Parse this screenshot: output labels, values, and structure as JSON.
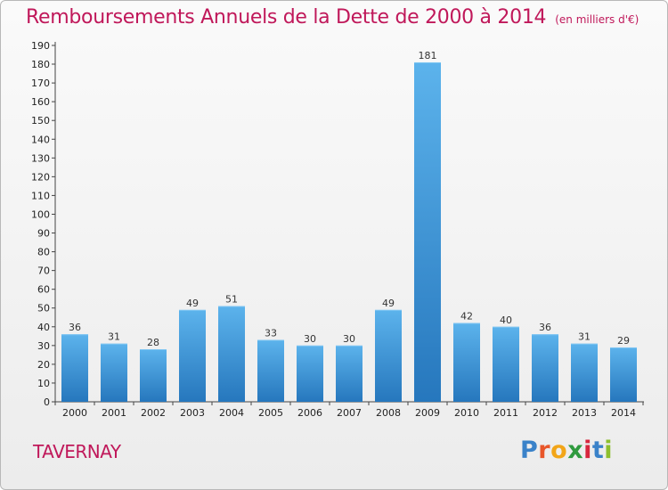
{
  "title": "Remboursements Annuels de la Dette de 2000 à 2014",
  "subtitle": "(en milliers d'€)",
  "commune": "TAVERNAY",
  "logo": {
    "letters": [
      "P",
      "r",
      "o",
      "x",
      "i",
      "t",
      "i"
    ],
    "colors": [
      "#3a82c9",
      "#e8562a",
      "#f2a518",
      "#2f9a3e",
      "#d7263d",
      "#3a82c9",
      "#8dbf2e"
    ]
  },
  "colors": {
    "title": "#c0185a",
    "bar_light": "#5aaee8",
    "bar_dark": "#2a7dc2",
    "axis": "#444444",
    "grid": "#d9d9d9"
  },
  "chart_data": {
    "type": "bar",
    "title": "Remboursements Annuels de la Dette de 2000 à 2014",
    "subtitle": "(en milliers d'€)",
    "categories": [
      "2000",
      "2001",
      "2002",
      "2003",
      "2004",
      "2005",
      "2006",
      "2007",
      "2008",
      "2009",
      "2010",
      "2011",
      "2012",
      "2013",
      "2014"
    ],
    "values": [
      36,
      31,
      28,
      49,
      51,
      33,
      30,
      30,
      49,
      181,
      42,
      40,
      36,
      31,
      29
    ],
    "ylim": [
      0,
      190
    ],
    "yticks": [
      0,
      10,
      20,
      30,
      40,
      50,
      60,
      70,
      80,
      90,
      100,
      110,
      120,
      130,
      140,
      150,
      160,
      170,
      180,
      190
    ],
    "grid": false,
    "data_labels": true
  }
}
